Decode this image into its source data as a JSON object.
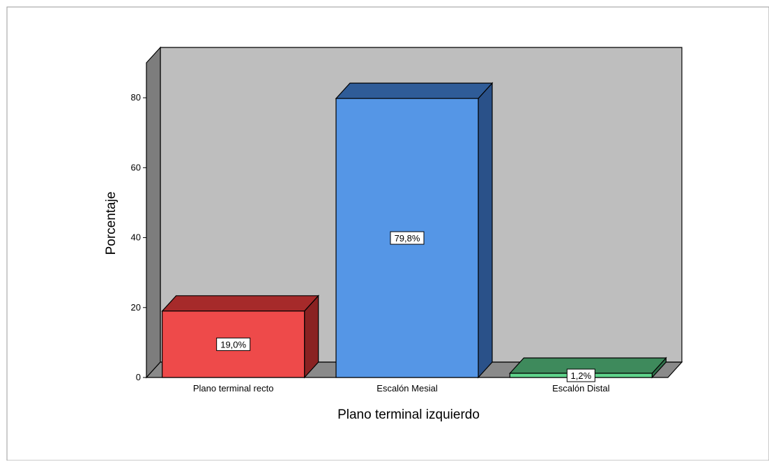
{
  "chart_data": {
    "type": "bar",
    "title": "",
    "xlabel": "Plano terminal izquierdo",
    "ylabel": "Porcentaje",
    "categories": [
      "Plano terminal recto",
      "Escalón Mesial",
      "Escalón Distal"
    ],
    "values": [
      19.0,
      79.8,
      1.2
    ],
    "value_labels": [
      "19,0%",
      "79,8%",
      "1,2%"
    ],
    "ylim": [
      0,
      90
    ],
    "yticks": [
      0,
      20,
      40,
      60,
      80
    ],
    "grid": false,
    "legend": "none",
    "style": "3d",
    "colors": {
      "backwall": "#bebebe",
      "floor": "#8a8a8a",
      "leftwall": "#7d7d7d",
      "bars": [
        {
          "front": "#ee4a4a",
          "top": "#a62a2a",
          "side": "#8a2222"
        },
        {
          "front": "#5596e6",
          "top": "#2f5c98",
          "side": "#2a5189"
        },
        {
          "front": "#5fd48c",
          "top": "#3e8a5c",
          "side": "#2f6f49"
        }
      ]
    }
  }
}
